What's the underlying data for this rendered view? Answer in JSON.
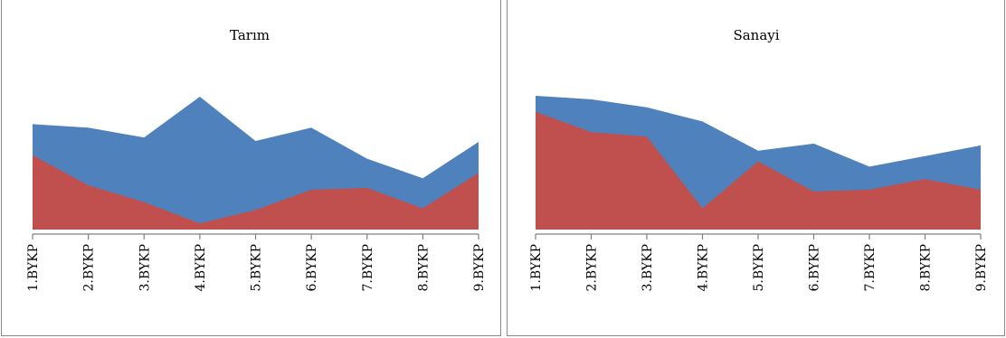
{
  "colors": {
    "series_blue": "#4f81bd",
    "series_red": "#c0504d",
    "axis": "#808080",
    "text": "#000000"
  },
  "chart_data": [
    {
      "type": "area",
      "title": "Tarım",
      "categories": [
        "1.BYKP",
        "2.BYKP",
        "3.BYKP",
        "4.BYKP",
        "5.BYKP",
        "6.BYKP",
        "7.BYKP",
        "8.BYKP",
        "9.BYKP"
      ],
      "series": [
        {
          "color": "#4f81bd",
          "values": [
            119,
            115,
            104,
            150,
            100,
            115,
            80,
            58,
            99
          ]
        },
        {
          "color": "#c0504d",
          "values": [
            84,
            50,
            31,
            7,
            22,
            45,
            47,
            24,
            64
          ]
        }
      ],
      "ylim": [
        0,
        160
      ],
      "grid": false
    },
    {
      "type": "area",
      "title": "Sanayi",
      "categories": [
        "1.BYKP",
        "2.BYKP",
        "3.BYKP",
        "4.BYKP",
        "5.BYKP",
        "6.BYKP",
        "7.BYKP",
        "8.BYKP",
        "9.BYKP"
      ],
      "series": [
        {
          "color": "#4f81bd",
          "values": [
            151,
            147,
            138,
            122,
            89,
            97,
            71,
            83,
            95
          ]
        },
        {
          "color": "#c0504d",
          "values": [
            133,
            110,
            105,
            24,
            77,
            43,
            45,
            57,
            45
          ]
        }
      ],
      "ylim": [
        0,
        160
      ],
      "grid": false
    }
  ]
}
